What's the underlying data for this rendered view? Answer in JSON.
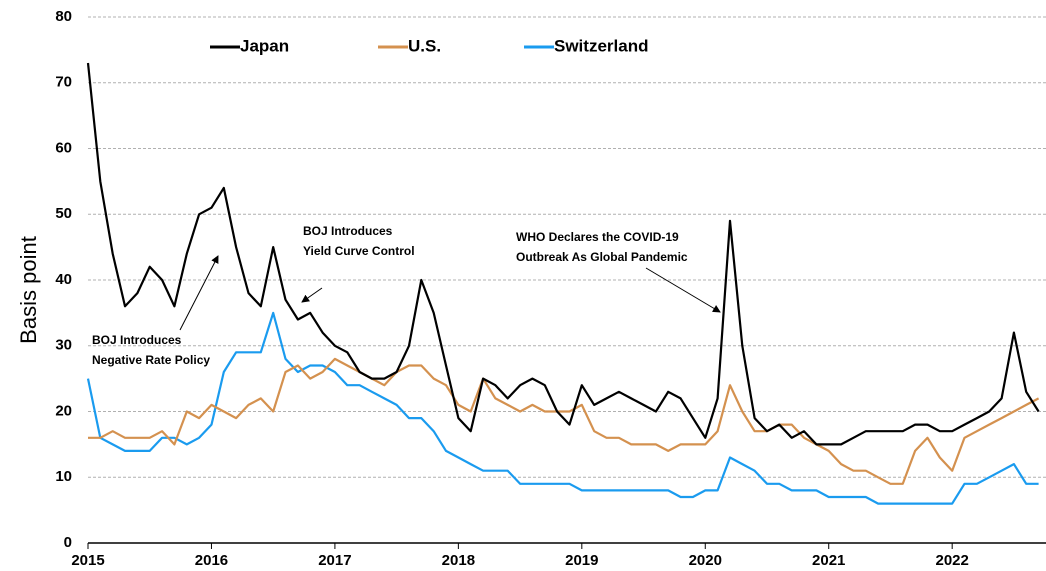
{
  "chart_data": {
    "type": "line",
    "y_label": "Basis point",
    "x": [
      2015,
      2015.1,
      2015.2,
      2015.3,
      2015.4,
      2015.5,
      2015.6,
      2015.7,
      2015.8,
      2015.9,
      2016,
      2016.1,
      2016.2,
      2016.3,
      2016.4,
      2016.5,
      2016.6,
      2016.7,
      2016.8,
      2016.9,
      2017,
      2017.1,
      2017.2,
      2017.3,
      2017.4,
      2017.5,
      2017.6,
      2017.7,
      2017.8,
      2017.9,
      2018,
      2018.1,
      2018.2,
      2018.3,
      2018.4,
      2018.5,
      2018.6,
      2018.7,
      2018.8,
      2018.9,
      2019,
      2019.1,
      2019.2,
      2019.3,
      2019.4,
      2019.5,
      2019.6,
      2019.7,
      2019.8,
      2019.9,
      2020,
      2020.1,
      2020.2,
      2020.3,
      2020.4,
      2020.5,
      2020.6,
      2020.7,
      2020.8,
      2020.9,
      2021,
      2021.1,
      2021.2,
      2021.3,
      2021.4,
      2021.5,
      2021.6,
      2021.7,
      2021.8,
      2021.9,
      2022,
      2022.1,
      2022.2,
      2022.3,
      2022.4,
      2022.5,
      2022.6,
      2022.7
    ],
    "series": [
      {
        "name": "Japan",
        "color": "#000000",
        "values": [
          73,
          55,
          44,
          36,
          38,
          42,
          40,
          36,
          44,
          50,
          51,
          54,
          45,
          38,
          36,
          45,
          37,
          34,
          35,
          32,
          30,
          29,
          26,
          25,
          25,
          26,
          30,
          40,
          35,
          27,
          19,
          17,
          25,
          24,
          22,
          24,
          25,
          24,
          20,
          18,
          24,
          21,
          22,
          23,
          22,
          21,
          20,
          23,
          22,
          19,
          16,
          22,
          49,
          30,
          19,
          17,
          18,
          16,
          17,
          15,
          15,
          15,
          16,
          17,
          17,
          17,
          17,
          18,
          18,
          17,
          17,
          18,
          19,
          20,
          22,
          32,
          23,
          20
        ]
      },
      {
        "name": "U.S.",
        "color": "#d4914f",
        "values": [
          16,
          16,
          17,
          16,
          16,
          16,
          17,
          15,
          20,
          19,
          21,
          20,
          19,
          21,
          22,
          20,
          26,
          27,
          25,
          26,
          28,
          27,
          26,
          25,
          24,
          26,
          27,
          27,
          25,
          24,
          21,
          20,
          25,
          22,
          21,
          20,
          21,
          20,
          20,
          20,
          21,
          17,
          16,
          16,
          15,
          15,
          15,
          14,
          15,
          15,
          15,
          17,
          24,
          20,
          17,
          17,
          18,
          18,
          16,
          15,
          14,
          12,
          11,
          11,
          10,
          9,
          9,
          14,
          16,
          13,
          11,
          16,
          17,
          18,
          19,
          20,
          21,
          22
        ]
      },
      {
        "name": "Switzerland",
        "color": "#1a9bef",
        "values": [
          25,
          16,
          15,
          14,
          14,
          14,
          16,
          16,
          15,
          16,
          18,
          26,
          29,
          29,
          29,
          35,
          28,
          26,
          27,
          27,
          26,
          24,
          24,
          23,
          22,
          21,
          19,
          19,
          17,
          14,
          13,
          12,
          11,
          11,
          11,
          9,
          9,
          9,
          9,
          9,
          8,
          8,
          8,
          8,
          8,
          8,
          8,
          8,
          7,
          7,
          8,
          8,
          13,
          12,
          11,
          9,
          9,
          8,
          8,
          8,
          7,
          7,
          7,
          7,
          6,
          6,
          6,
          6,
          6,
          6,
          6,
          9,
          9,
          10,
          11,
          12,
          9,
          9
        ]
      }
    ],
    "xlim": [
      2015,
      2022.76
    ],
    "xticks": [
      2015,
      2016,
      2017,
      2018,
      2019,
      2020,
      2021,
      2022
    ],
    "ylim": [
      0,
      80
    ],
    "yticks": [
      0,
      10,
      20,
      30,
      40,
      50,
      60,
      70,
      80
    ],
    "grid": true,
    "legend": "top",
    "annotations": [
      {
        "lines": [
          "BOJ Introduces",
          "Negative Rate Policy"
        ]
      },
      {
        "lines": [
          "BOJ Introduces",
          "Yield Curve Control"
        ]
      },
      {
        "lines": [
          "WHO Declares the COVID-19",
          "Outbreak As Global Pandemic"
        ]
      }
    ]
  }
}
